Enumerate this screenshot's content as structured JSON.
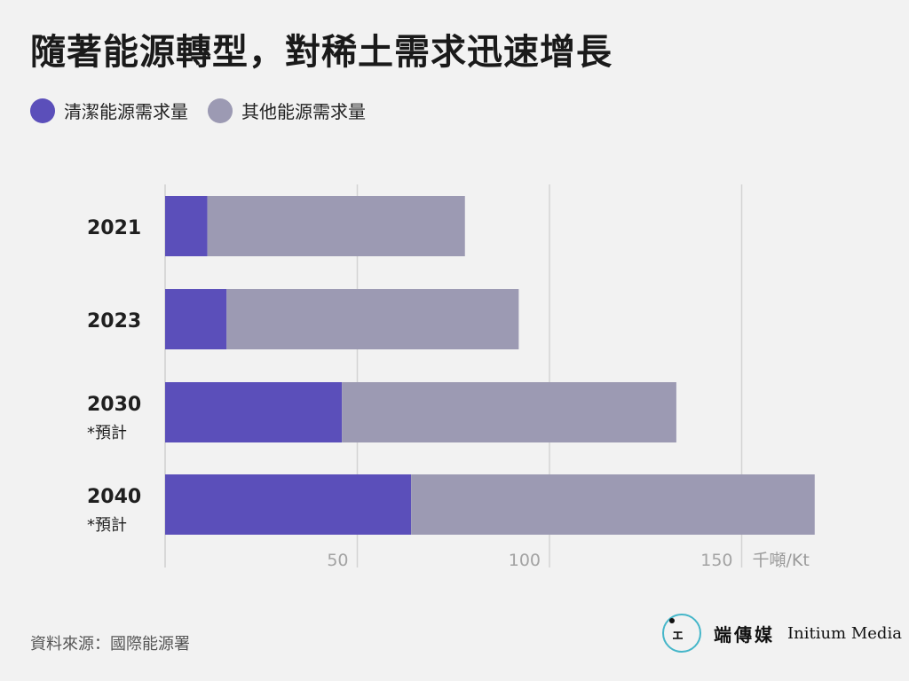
{
  "title": "隨著能源轉型，對稀土需求迅速增長",
  "legend": [
    {
      "label": "清潔能源需求量",
      "color": "#5b4fba"
    },
    {
      "label": "其他能源需求量",
      "color": "#9c9ab3"
    }
  ],
  "chart_data": {
    "type": "bar",
    "orientation": "horizontal",
    "stacked": true,
    "categories": [
      {
        "label": "2021",
        "sub": ""
      },
      {
        "label": "2023",
        "sub": ""
      },
      {
        "label": "2030",
        "sub": "*預計"
      },
      {
        "label": "2040",
        "sub": "*預計"
      }
    ],
    "series": [
      {
        "name": "清潔能源需求量",
        "color": "#5b4fba",
        "values": [
          11,
          16,
          46,
          64
        ]
      },
      {
        "name": "其他能源需求量",
        "color": "#9c9ab3",
        "values": [
          67,
          76,
          87,
          105
        ]
      }
    ],
    "xlim": [
      0,
      175
    ],
    "xticks": [
      50,
      100,
      150
    ],
    "unit": "千噸/Kt",
    "grid": true,
    "legend_position": "top-left"
  },
  "source": "資料來源：國際能源署",
  "brand": {
    "cn": "端傳媒",
    "en": "Initium Media"
  }
}
